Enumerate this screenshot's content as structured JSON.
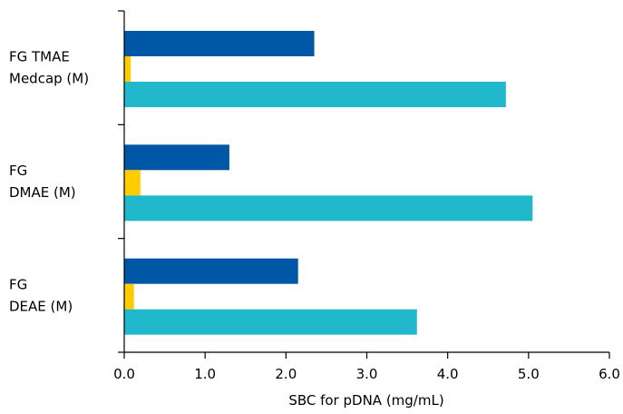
{
  "chart_data": {
    "type": "bar",
    "orientation": "horizontal",
    "categories": [
      [
        "FG TMAE",
        "Medcap (M)"
      ],
      [
        "FG",
        "DMAE (M)"
      ],
      [
        "FG",
        "DEAE (M)"
      ]
    ],
    "series": [
      {
        "color": "#0057a6",
        "values": [
          2.35,
          1.3,
          2.15
        ]
      },
      {
        "color": "#ffcc00",
        "values": [
          0.08,
          0.2,
          0.12
        ]
      },
      {
        "color": "#22b8cc",
        "values": [
          4.72,
          5.05,
          3.62
        ]
      }
    ],
    "xlabel": "SBC for pDNA (mg/mL)",
    "xlim": [
      0,
      6
    ],
    "xticks": [
      "0.0",
      "1.0",
      "2.0",
      "3.0",
      "4.0",
      "5.0",
      "6.0"
    ],
    "grid": false,
    "legend": "none"
  }
}
